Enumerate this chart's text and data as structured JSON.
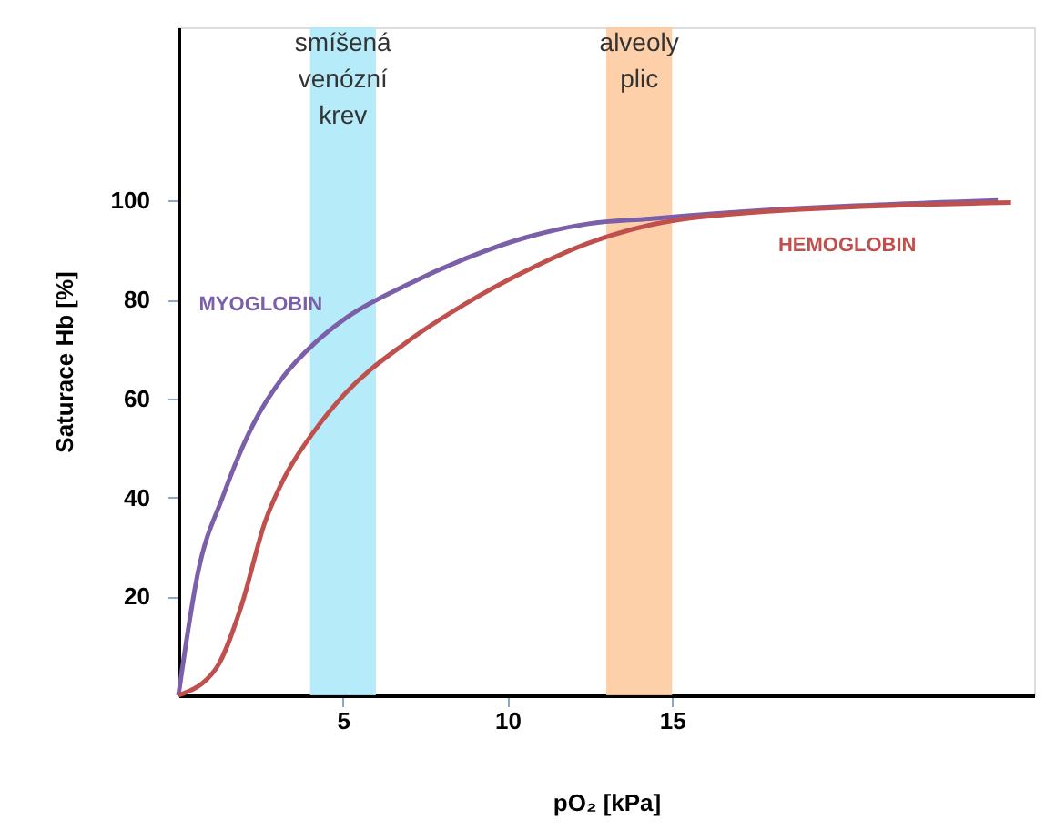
{
  "chart_data": {
    "type": "line",
    "xlabel": "pO₂ [kPa]",
    "ylabel": "Saturace Hb [%]",
    "xlim": [
      0,
      26
    ],
    "ylim": [
      0,
      135
    ],
    "xticks": [
      5,
      10,
      15
    ],
    "yticks": [
      20,
      40,
      60,
      80,
      100
    ],
    "grid": false,
    "legend": false,
    "marker": "none",
    "line_style": "solid",
    "bands": [
      {
        "axis": "x",
        "from": 4,
        "to": 6,
        "label": "smíšená venózní krev",
        "color": "#aeeafa"
      },
      {
        "axis": "x",
        "from": 13,
        "to": 15,
        "label": "alveoly plic",
        "color": "#fdcba0"
      }
    ],
    "series": [
      {
        "name": "MYOGLOBIN",
        "color": "#7b5fa8",
        "x": [
          0,
          0.6,
          1.34,
          2.26,
          3.19,
          4.13,
          5.04,
          6.9,
          8.74,
          10.6,
          12.46,
          14.3,
          16.2,
          24.9
        ],
        "values": [
          0,
          25,
          40,
          54.6,
          64.4,
          71.1,
          76,
          82.8,
          88.3,
          92.6,
          95.3,
          96.3,
          97.3,
          100
        ]
      },
      {
        "name": "HEMOGLOBIN",
        "color": "#c0504d",
        "x": [
          0,
          1.15,
          1.9,
          2.63,
          3.19,
          4.13,
          5.04,
          6.9,
          8.74,
          10.6,
          12.46,
          14.3,
          16.2,
          25.3
        ],
        "values": [
          0,
          5.5,
          17.8,
          35,
          43.6,
          53.4,
          60.8,
          71.2,
          79.2,
          85.9,
          91.4,
          95,
          96.9,
          99.6
        ]
      }
    ]
  }
}
